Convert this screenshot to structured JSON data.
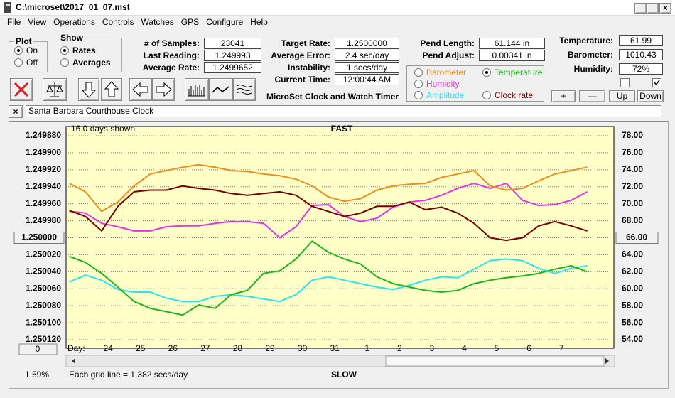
{
  "window": {
    "title": "C:\\microset\\2017_01_07.mst"
  },
  "menu": [
    "File",
    "View",
    "Operations",
    "Controls",
    "Watches",
    "GPS",
    "Configure",
    "Help"
  ],
  "plot_group": {
    "label": "Plot",
    "options": [
      "On",
      "Off"
    ]
  },
  "show_group": {
    "label": "Show",
    "options": [
      "Rates",
      "Averages"
    ]
  },
  "stats": [
    {
      "label": "# of Samples:",
      "value": "23041"
    },
    {
      "label": "Last Reading:",
      "value": "1.249993"
    },
    {
      "label": "Average Rate:",
      "value": "1.2499652"
    }
  ],
  "timing": [
    {
      "label": "Target Rate:",
      "value": "1.2500000"
    },
    {
      "label": "Average Error:",
      "value": "2.4 sec/day"
    },
    {
      "label": "Instability:",
      "value": "1 secs/day"
    },
    {
      "label": "Current Time:",
      "value": "12:00:44 AM"
    }
  ],
  "pendulum": [
    {
      "label": "Pend Length:",
      "value": "61.144 in"
    },
    {
      "label": "Pend Adjust:",
      "value": "0.00341 in"
    }
  ],
  "sensors": [
    {
      "label": "Temperature:",
      "value": "61.99"
    },
    {
      "label": "Barometer:",
      "value": "1010.43"
    },
    {
      "label": "Humidity:",
      "value": "72%"
    }
  ],
  "app_name": "MicroSet Clock and Watch Timer",
  "buttons": [
    "+",
    "—",
    "Up",
    "Down"
  ],
  "clock_name": "Santa Barbara Courthouse Clock",
  "status": {
    "zoom": "0",
    "percent": "1.59%",
    "note": "Each grid line = 1.382 secs/day"
  },
  "chart_data": {
    "type": "line",
    "days_shown": "16.0 days shown",
    "top_label": "FAST",
    "bottom_label": "SLOW",
    "x_label": "Day:",
    "x": [
      22.8,
      23.3,
      23.8,
      24.3,
      24.8,
      25.3,
      25.8,
      26.3,
      26.8,
      27.3,
      27.8,
      28.3,
      28.8,
      29.3,
      29.8,
      30.3,
      30.8,
      31.3,
      31.8,
      32.3,
      32.8,
      33.3,
      33.8,
      34.3,
      34.8,
      35.3,
      35.8,
      36.3,
      36.8,
      37.3,
      37.8,
      38.3,
      38.8
    ],
    "xlim": [
      22.7,
      39.6
    ],
    "xticks": [
      24,
      25,
      26,
      27,
      28,
      29,
      30,
      31,
      {
        "value": 32,
        "label": "1"
      },
      {
        "value": 33,
        "label": "2"
      },
      {
        "value": 34,
        "label": "3"
      },
      {
        "value": 35,
        "label": "4"
      },
      {
        "value": 36,
        "label": "5"
      },
      {
        "value": 37,
        "label": "6"
      },
      {
        "value": 38,
        "label": "7"
      }
    ],
    "ylim": [
      1.25012,
      1.24988
    ],
    "yticks": [
      {
        "value": 1.24988,
        "label": "1.249880"
      },
      {
        "value": 1.2499,
        "label": "1.249900"
      },
      {
        "value": 1.24992,
        "label": "1.249920"
      },
      {
        "value": 1.24994,
        "label": "1.249940"
      },
      {
        "value": 1.24996,
        "label": "1.249960"
      },
      {
        "value": 1.24998,
        "label": "1.249980"
      },
      {
        "value": 1.25,
        "label": "1.250000"
      },
      {
        "value": 1.25002,
        "label": "1.250020"
      },
      {
        "value": 1.25004,
        "label": "1.250040"
      },
      {
        "value": 1.25006,
        "label": "1.250060"
      },
      {
        "value": 1.25008,
        "label": "1.250080"
      },
      {
        "value": 1.2501,
        "label": "1.250100"
      },
      {
        "value": 1.25012,
        "label": "1.250120"
      }
    ],
    "y2lim": [
      54,
      78
    ],
    "y2ticks": [
      {
        "value": 78,
        "label": "78.00"
      },
      {
        "value": 76,
        "label": "76.00"
      },
      {
        "value": 74,
        "label": "74.00"
      },
      {
        "value": 72,
        "label": "72.00"
      },
      {
        "value": 70,
        "label": "70.00"
      },
      {
        "value": 68,
        "label": "68.00"
      },
      {
        "value": 66,
        "label": "66.00"
      },
      {
        "value": 64,
        "label": "64.00"
      },
      {
        "value": 62,
        "label": "62.00"
      },
      {
        "value": 60,
        "label": "60.00"
      },
      {
        "value": 58,
        "label": "58.00"
      },
      {
        "value": 56,
        "label": "56.00"
      },
      {
        "value": 54,
        "label": "54.00"
      }
    ],
    "grid": true,
    "series": [
      {
        "name": "Barometer",
        "color": "#f08c1e",
        "axis": "y2",
        "values": [
          72.4,
          71.4,
          69.1,
          70.2,
          72.1,
          73.5,
          73.9,
          74.3,
          74.6,
          74.3,
          73.9,
          73.8,
          73.5,
          73.3,
          72.9,
          72.1,
          70.8,
          70.3,
          70.6,
          71.6,
          72.1,
          72.3,
          72.4,
          73.1,
          73.5,
          73.9,
          72.1,
          71.6,
          71.8,
          72.7,
          73.5,
          73.9,
          74.3
        ]
      },
      {
        "name": "Humidity",
        "color": "#e632e6",
        "axis": "y2",
        "values": [
          69.1,
          68.9,
          67.7,
          67.3,
          66.8,
          66.8,
          67.3,
          67.4,
          67.4,
          67.7,
          67.9,
          67.9,
          67.7,
          66.0,
          67.3,
          69.8,
          69.9,
          68.5,
          67.9,
          68.3,
          69.6,
          70.2,
          70.4,
          71.0,
          71.8,
          72.4,
          71.8,
          72.4,
          70.4,
          69.8,
          69.9,
          70.4,
          71.4
        ]
      },
      {
        "name": "Amplitude",
        "color": "#28e6f0",
        "axis": "y2",
        "values": [
          60.8,
          61.6,
          61.0,
          59.9,
          59.6,
          59.6,
          58.9,
          58.5,
          58.5,
          59.1,
          59.3,
          59.1,
          58.8,
          58.5,
          59.3,
          61.0,
          61.4,
          61.0,
          60.6,
          60.2,
          59.9,
          60.4,
          61.0,
          61.4,
          61.3,
          62.3,
          63.3,
          63.5,
          63.3,
          62.4,
          61.8,
          62.4,
          62.7
        ]
      },
      {
        "name": "Temperature",
        "color": "#1eb41e",
        "axis": "y2",
        "values": [
          63.8,
          63.1,
          61.8,
          60.2,
          58.5,
          57.7,
          57.3,
          56.9,
          58.1,
          57.7,
          59.3,
          59.8,
          61.8,
          62.1,
          63.5,
          65.6,
          64.3,
          63.5,
          62.9,
          61.4,
          60.6,
          60.2,
          59.8,
          59.6,
          59.8,
          60.6,
          61.0,
          61.3,
          61.5,
          61.8,
          62.3,
          62.7,
          62.0
        ]
      },
      {
        "name": "Clock rate",
        "color": "#780000",
        "values": [
          1.249968,
          1.249975,
          1.249992,
          1.249963,
          1.249946,
          1.249944,
          1.249944,
          1.249939,
          1.249942,
          1.249944,
          1.249948,
          1.24995,
          1.249948,
          1.249946,
          1.24995,
          1.249963,
          1.249969,
          1.249975,
          1.249971,
          1.249963,
          1.249963,
          1.249958,
          1.249967,
          1.249964,
          1.249971,
          1.249983,
          1.25,
          1.250003,
          1.25,
          1.249986,
          1.249981,
          1.249986,
          1.249992
        ]
      }
    ]
  }
}
